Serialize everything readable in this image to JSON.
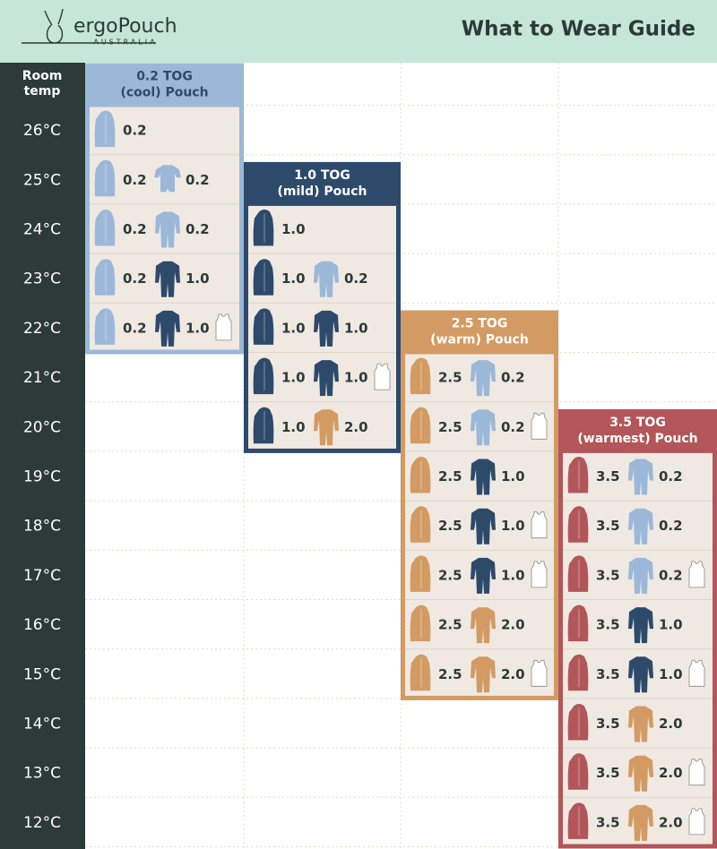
{
  "header": {
    "brand": "ergoPouch",
    "country": "AUSTRALIA",
    "title": "What to Wear Guide"
  },
  "room_temp_header": [
    "Room",
    "temp"
  ],
  "temps": [
    "26°C",
    "25°C",
    "24°C",
    "23°C",
    "22°C",
    "21°C",
    "20°C",
    "19°C",
    "18°C",
    "17°C",
    "16°C",
    "15°C",
    "14°C",
    "13°C",
    "12°C"
  ],
  "groups": [
    {
      "title": [
        "0.2 TOG",
        "(cool) Pouch"
      ],
      "color": "#9bb8d9",
      "title_color": "#2d4a6b",
      "rows": [
        {
          "pouch": "0.2"
        },
        {
          "pouch": "0.2",
          "garment": {
            "label": "0.2",
            "color": "#9bb8d9",
            "shape": "romper"
          }
        },
        {
          "pouch": "0.2",
          "garment": {
            "label": "0.2",
            "color": "#9bb8d9",
            "shape": "suit"
          }
        },
        {
          "pouch": "0.2",
          "garment": {
            "label": "1.0",
            "color": "#2d4a6b",
            "shape": "suit"
          }
        },
        {
          "pouch": "0.2",
          "garment": {
            "label": "1.0",
            "color": "#2d4a6b",
            "shape": "suit"
          },
          "vest": true
        }
      ]
    },
    {
      "title": [
        "1.0 TOG",
        "(mild) Pouch"
      ],
      "color": "#2d4a6b",
      "title_color": "#ffffff",
      "rows": [
        {
          "pouch": "1.0"
        },
        {
          "pouch": "1.0",
          "garment": {
            "label": "0.2",
            "color": "#9bb8d9",
            "shape": "suit"
          }
        },
        {
          "pouch": "1.0",
          "garment": {
            "label": "1.0",
            "color": "#2d4a6b",
            "shape": "suit"
          }
        },
        {
          "pouch": "1.0",
          "garment": {
            "label": "1.0",
            "color": "#2d4a6b",
            "shape": "suit"
          },
          "vest": true
        },
        {
          "pouch": "1.0",
          "garment": {
            "label": "2.0",
            "color": "#d39b63",
            "shape": "suit"
          }
        }
      ]
    },
    {
      "title": [
        "2.5 TOG",
        "(warm) Pouch"
      ],
      "color": "#d39b63",
      "title_color": "#ffffff",
      "rows": [
        {
          "pouch": "2.5",
          "garment": {
            "label": "0.2",
            "color": "#9bb8d9",
            "shape": "suit"
          }
        },
        {
          "pouch": "2.5",
          "garment": {
            "label": "0.2",
            "color": "#9bb8d9",
            "shape": "suit"
          },
          "vest": true
        },
        {
          "pouch": "2.5",
          "garment": {
            "label": "1.0",
            "color": "#2d4a6b",
            "shape": "suit"
          }
        },
        {
          "pouch": "2.5",
          "garment": {
            "label": "1.0",
            "color": "#2d4a6b",
            "shape": "suit"
          },
          "vest": true
        },
        {
          "pouch": "2.5",
          "garment": {
            "label": "1.0",
            "color": "#2d4a6b",
            "shape": "suit"
          },
          "vest": true
        },
        {
          "pouch": "2.5",
          "garment": {
            "label": "2.0",
            "color": "#d39b63",
            "shape": "suit"
          }
        },
        {
          "pouch": "2.5",
          "garment": {
            "label": "2.0",
            "color": "#d39b63",
            "shape": "suit"
          },
          "vest": true
        }
      ]
    },
    {
      "title": [
        "3.5 TOG",
        "(warmest) Pouch"
      ],
      "color": "#b35659",
      "title_color": "#ffffff",
      "rows": [
        {
          "pouch": "3.5",
          "garment": {
            "label": "0.2",
            "color": "#9bb8d9",
            "shape": "suit"
          }
        },
        {
          "pouch": "3.5",
          "garment": {
            "label": "0.2",
            "color": "#9bb8d9",
            "shape": "suit"
          }
        },
        {
          "pouch": "3.5",
          "garment": {
            "label": "0.2",
            "color": "#9bb8d9",
            "shape": "suit"
          },
          "vest": true
        },
        {
          "pouch": "3.5",
          "garment": {
            "label": "1.0",
            "color": "#2d4a6b",
            "shape": "suit"
          }
        },
        {
          "pouch": "3.5",
          "garment": {
            "label": "1.0",
            "color": "#2d4a6b",
            "shape": "suit"
          },
          "vest": true
        },
        {
          "pouch": "3.5",
          "garment": {
            "label": "2.0",
            "color": "#d39b63",
            "shape": "suit"
          }
        },
        {
          "pouch": "3.5",
          "garment": {
            "label": "2.0",
            "color": "#d39b63",
            "shape": "suit"
          },
          "vest": true
        },
        {
          "pouch": "3.5",
          "garment": {
            "label": "2.0",
            "color": "#d39b63",
            "shape": "suit"
          },
          "vest": true
        }
      ]
    }
  ]
}
